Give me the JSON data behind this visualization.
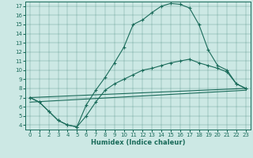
{
  "xlabel": "Humidex (Indice chaleur)",
  "bg_color": "#cce8e4",
  "line_color": "#1a6b5a",
  "xlim": [
    -0.5,
    23.5
  ],
  "ylim": [
    3.5,
    17.5
  ],
  "x_ticks": [
    0,
    1,
    2,
    3,
    4,
    5,
    6,
    7,
    8,
    9,
    10,
    11,
    12,
    13,
    14,
    15,
    16,
    17,
    18,
    19,
    20,
    21,
    22,
    23
  ],
  "y_ticks": [
    4,
    5,
    6,
    7,
    8,
    9,
    10,
    11,
    12,
    13,
    14,
    15,
    16,
    17
  ],
  "line1_x": [
    0,
    1,
    2,
    3,
    4,
    5,
    6,
    7,
    8,
    9,
    10,
    11,
    12,
    13,
    14,
    15,
    16,
    17,
    18,
    19,
    20,
    21,
    22,
    23
  ],
  "line1_y": [
    7.0,
    6.5,
    5.5,
    4.5,
    4.0,
    3.8,
    6.2,
    7.8,
    9.2,
    10.8,
    12.5,
    15.0,
    15.5,
    16.3,
    17.0,
    17.3,
    17.2,
    16.8,
    15.0,
    12.2,
    10.5,
    10.0,
    8.5,
    8.0
  ],
  "line2_x": [
    0,
    1,
    2,
    3,
    4,
    5,
    6,
    7,
    8,
    9,
    10,
    11,
    12,
    13,
    14,
    15,
    16,
    17,
    18,
    19,
    20,
    21,
    22,
    23
  ],
  "line2_y": [
    7.0,
    6.5,
    5.5,
    4.5,
    4.0,
    3.8,
    5.0,
    6.5,
    7.8,
    8.5,
    9.0,
    9.5,
    10.0,
    10.2,
    10.5,
    10.8,
    11.0,
    11.2,
    10.8,
    10.5,
    10.2,
    9.8,
    8.5,
    8.0
  ],
  "line3_x": [
    0,
    23
  ],
  "line3_y": [
    7.0,
    8.0
  ],
  "line4_x": [
    0,
    23
  ],
  "line4_y": [
    6.5,
    7.8
  ],
  "figsize": [
    3.2,
    2.0
  ],
  "dpi": 100
}
